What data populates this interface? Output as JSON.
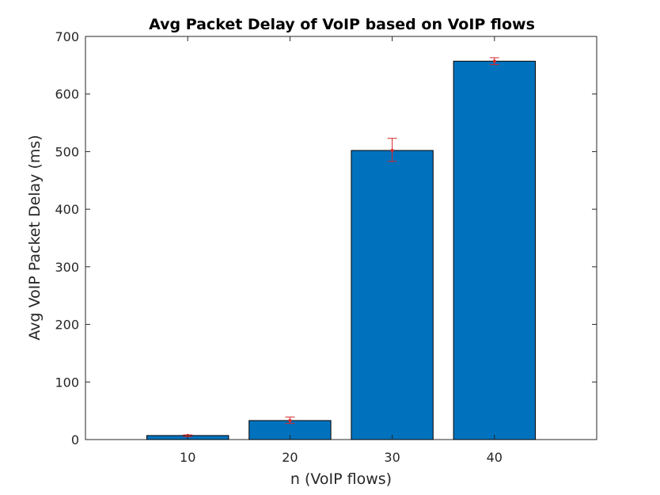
{
  "chart_data": {
    "type": "bar",
    "title": "Avg Packet Delay of VoIP based on VoIP flows",
    "xlabel": "n (VoIP flows)",
    "ylabel": "Avg VoIP Packet Delay (ms)",
    "categories": [
      "10",
      "20",
      "30",
      "40"
    ],
    "x": [
      10,
      20,
      30,
      40
    ],
    "values": [
      7,
      33,
      502,
      657
    ],
    "error_low": [
      5,
      28,
      483,
      651
    ],
    "error_high": [
      8,
      39,
      523,
      663
    ],
    "xlim": [
      0,
      50
    ],
    "ylim": [
      0,
      700
    ],
    "yticks": [
      0,
      100,
      200,
      300,
      400,
      500,
      600,
      700
    ],
    "xticks": [
      10,
      20,
      30,
      40
    ],
    "grid": false,
    "legend": "none",
    "colors": {
      "bar_fill": "#0072bd",
      "bar_edge": "#000000",
      "error_bar": "#d62728",
      "axes": "#262626"
    }
  }
}
